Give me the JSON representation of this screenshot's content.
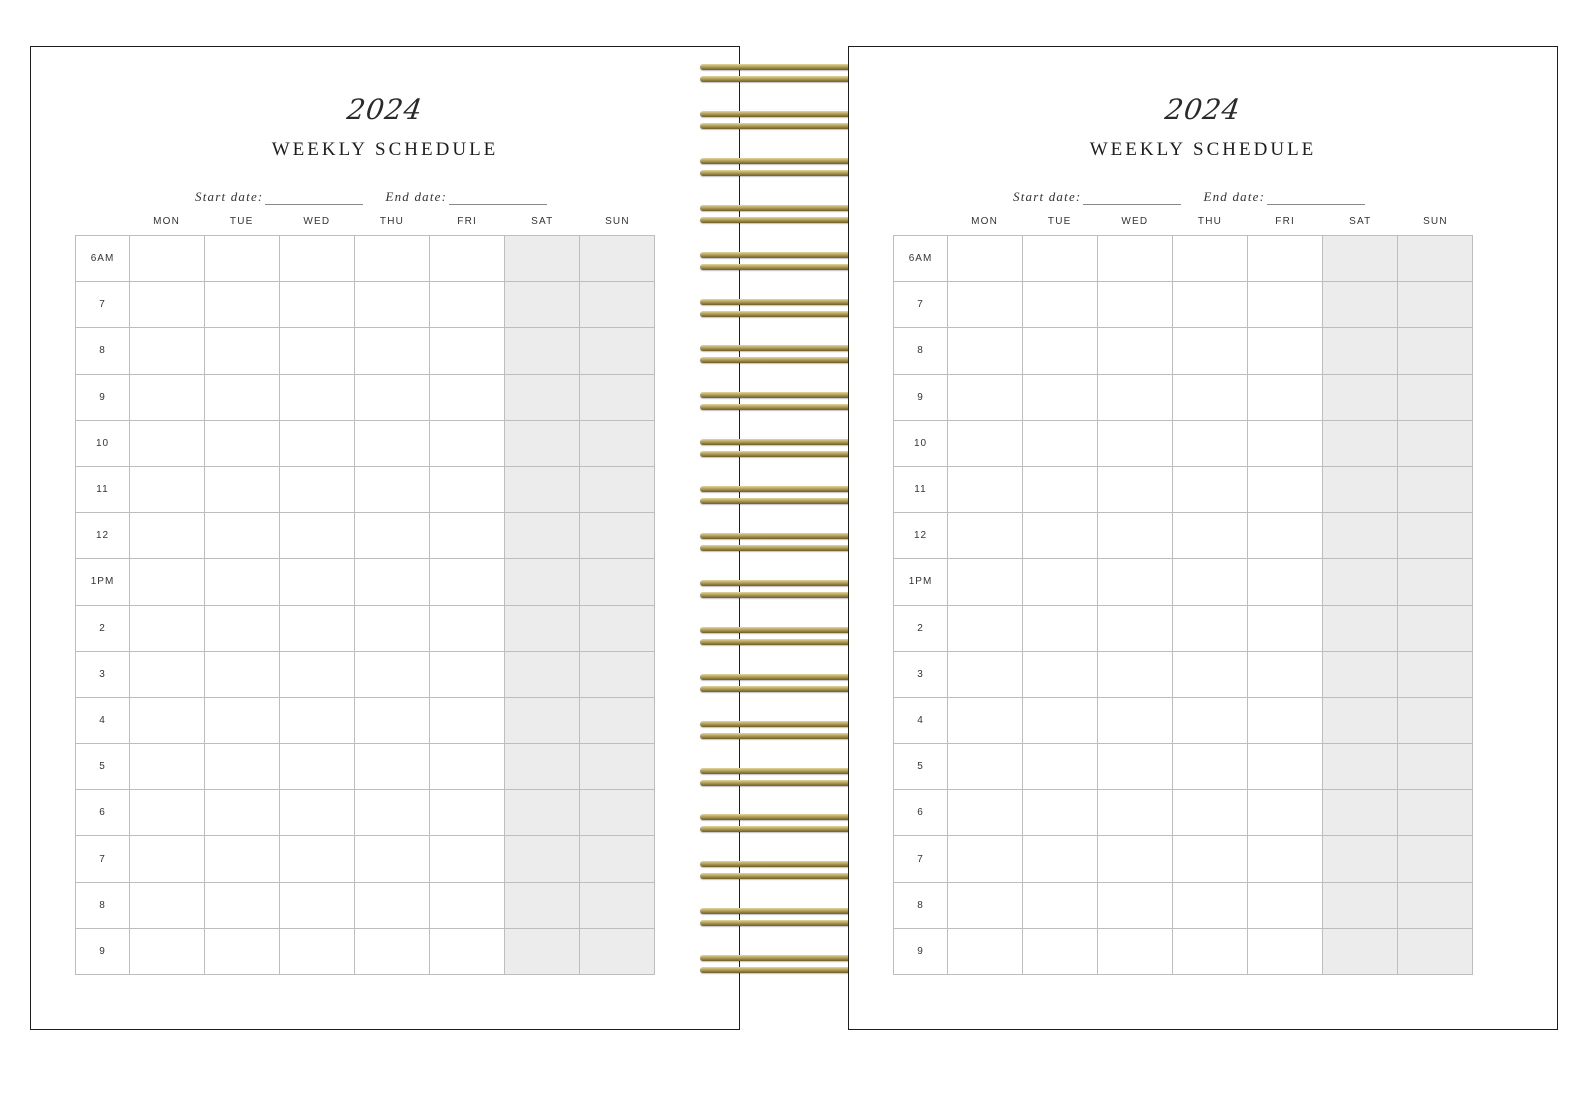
{
  "pages": [
    {
      "year": "2024",
      "title": "WEEKLY SCHEDULE",
      "start_label": "Start date:",
      "end_label": "End date:",
      "days": [
        "MON",
        "TUE",
        "WED",
        "THU",
        "FRI",
        "SAT",
        "SUN"
      ],
      "weekend_days": [
        "SAT",
        "SUN"
      ],
      "hours": [
        "6AM",
        "7",
        "8",
        "9",
        "10",
        "11",
        "12",
        "1PM",
        "2",
        "3",
        "4",
        "5",
        "6",
        "7",
        "8",
        "9"
      ]
    },
    {
      "year": "2024",
      "title": "WEEKLY SCHEDULE",
      "start_label": "Start date:",
      "end_label": "End date:",
      "days": [
        "MON",
        "TUE",
        "WED",
        "THU",
        "FRI",
        "SAT",
        "SUN"
      ],
      "weekend_days": [
        "SAT",
        "SUN"
      ],
      "hours": [
        "6AM",
        "7",
        "8",
        "9",
        "10",
        "11",
        "12",
        "1PM",
        "2",
        "3",
        "4",
        "5",
        "6",
        "7",
        "8",
        "9"
      ]
    }
  ],
  "colors": {
    "border": "#1e1e1e",
    "grid_line": "#bdbdbd",
    "weekend_fill": "#ececec",
    "spiral_gold": "#b5a15a"
  }
}
